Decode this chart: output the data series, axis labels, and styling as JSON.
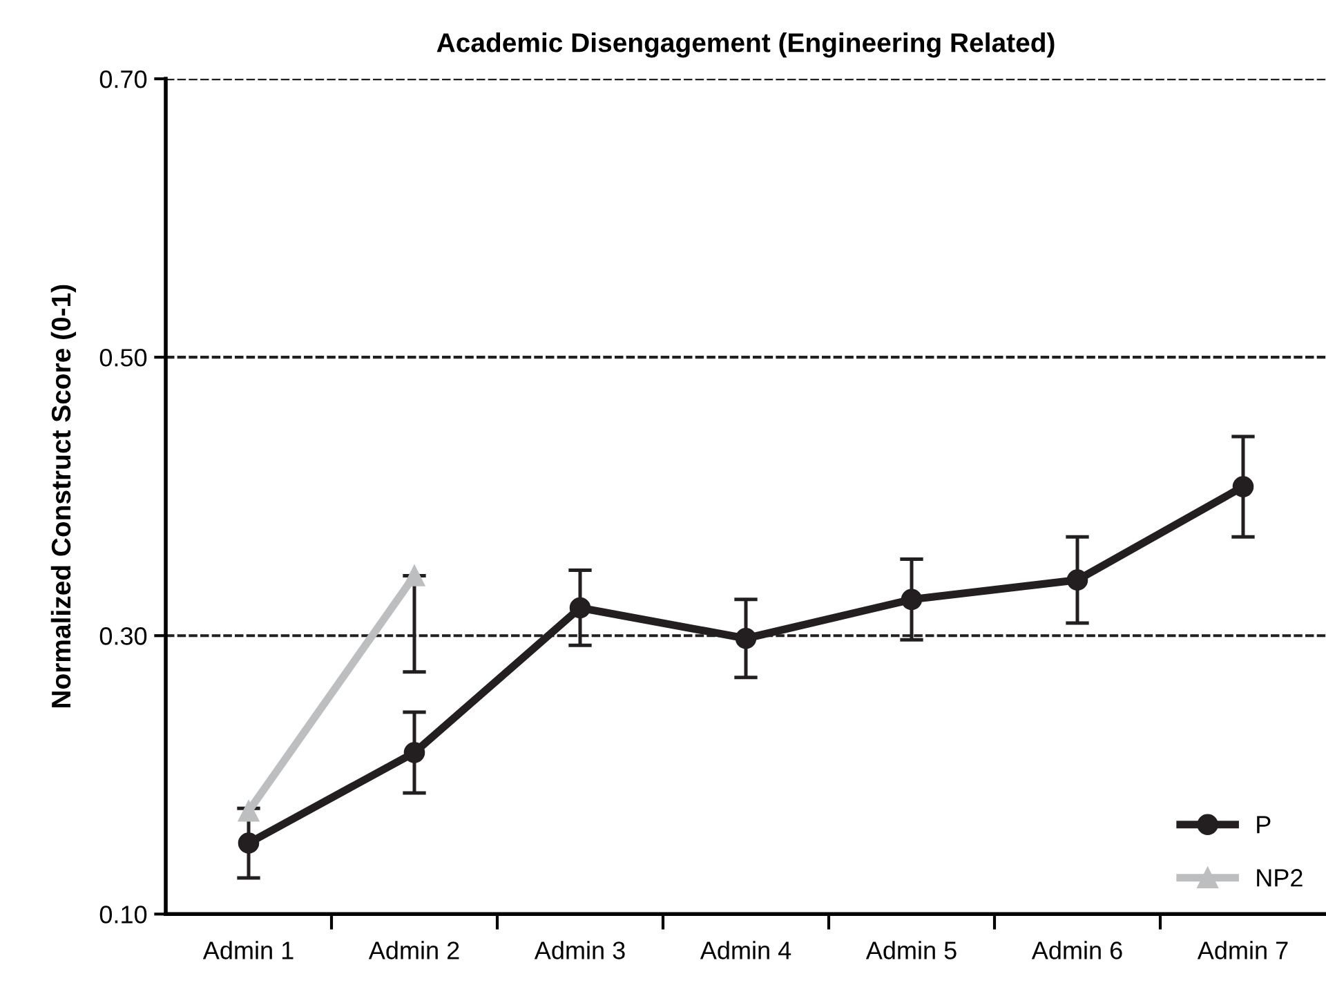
{
  "chart_data": {
    "type": "line",
    "title": "Academic Disengagement (Engineering Related)",
    "ylabel": "Normalized Construct Score (0-1)",
    "categories": [
      "Admin 1",
      "Admin 2",
      "Admin 3",
      "Admin 4",
      "Admin 5",
      "Admin 6",
      "Admin 7"
    ],
    "series": [
      {
        "name": "P",
        "color": "#231f20",
        "marker": "circle",
        "values": [
          0.151,
          0.216,
          0.32,
          0.298,
          0.326,
          0.34,
          0.407
        ],
        "errors": [
          0.025,
          0.029,
          0.027,
          0.028,
          0.029,
          0.031,
          0.036
        ]
      },
      {
        "name": "NP2",
        "color": "#bcbec0",
        "marker": "triangle",
        "values": [
          0.174,
          0.343,
          null,
          null,
          null,
          null,
          null
        ],
        "errors": [
          null,
          [
            0.274,
            0.343
          ],
          null,
          null,
          null,
          null,
          null
        ]
      }
    ],
    "ylim": [
      0.1,
      0.7
    ],
    "yticks": [
      {
        "value": 0.1,
        "label": "0.10"
      },
      {
        "value": 0.3,
        "label": "0.30"
      },
      {
        "value": 0.5,
        "label": "0.50"
      },
      {
        "value": 0.7,
        "label": "0.70"
      }
    ],
    "grid": "y",
    "legend": "bottom right",
    "line_style": "solid"
  }
}
